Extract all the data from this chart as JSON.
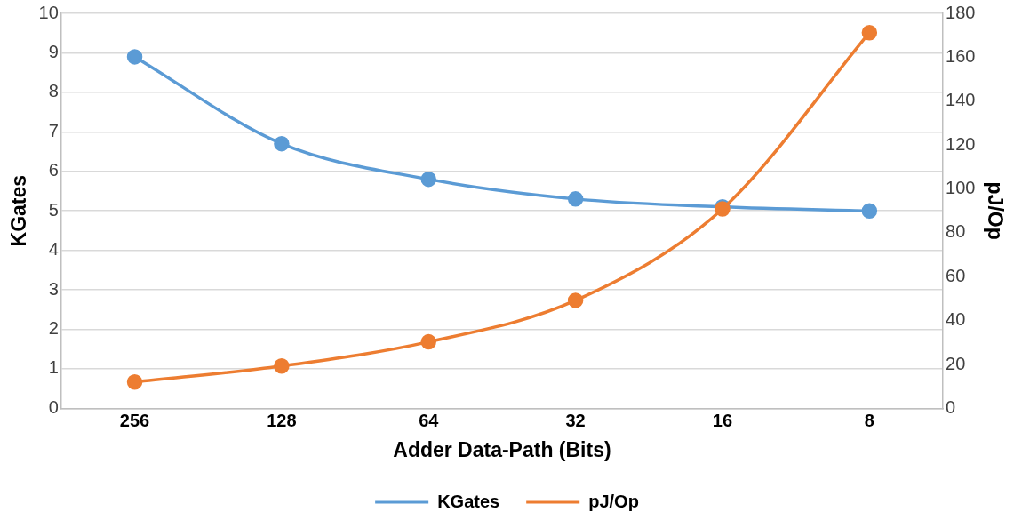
{
  "chart_data": {
    "type": "line",
    "xlabel": "Adder Data-Path (Bits)",
    "ylabel": "KGates",
    "y2label": "pJ/Op",
    "categories": [
      "256",
      "128",
      "64",
      "32",
      "16",
      "8"
    ],
    "series": [
      {
        "name": "KGates",
        "color": "#5b9bd5",
        "values": [
          8.9,
          6.7,
          5.8,
          5.3,
          5.1,
          5.0
        ]
      },
      {
        "name": "pJ/Op",
        "color": "#ed7d31",
        "axis": "y2",
        "values": [
          12,
          19.3,
          30.3,
          49.2,
          90.9,
          171.2
        ]
      }
    ],
    "ylim": [
      0,
      10
    ],
    "yticks": [
      0,
      1,
      2,
      3,
      4,
      5,
      6,
      7,
      8,
      9,
      10
    ],
    "y2lim": [
      0,
      180
    ],
    "y2ticks": [
      0,
      20,
      40,
      60,
      80,
      100,
      120,
      140,
      160,
      180
    ],
    "grid": "y",
    "legend": "bottom",
    "marker": "circle",
    "line_style": "solid"
  }
}
